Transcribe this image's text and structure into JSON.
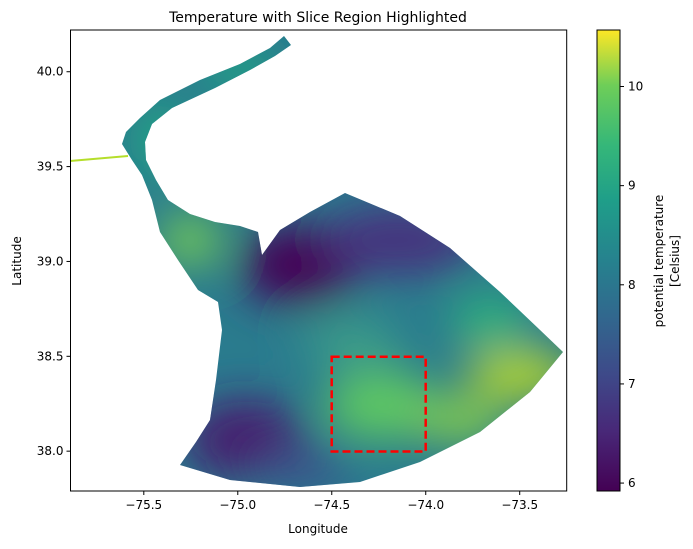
{
  "chart_data": {
    "type": "heatmap",
    "title": "Temperature with Slice Region Highlighted",
    "xlabel": "Longitude",
    "ylabel": "Latitude",
    "xlim": [
      -75.89,
      -73.25
    ],
    "ylim": [
      37.79,
      40.22
    ],
    "xticks": [
      -75.5,
      -75.0,
      -74.5,
      -74.0,
      -73.5
    ],
    "xtick_labels": [
      "−75.5",
      "−75.0",
      "−74.5",
      "−74.0",
      "−73.5"
    ],
    "yticks": [
      38.0,
      38.5,
      39.0,
      39.5,
      40.0
    ],
    "ytick_labels": [
      "38.0",
      "38.5",
      "39.0",
      "39.5",
      "40.0"
    ],
    "colorbar": {
      "label_line1": "potential temperature",
      "label_line2": "[Celsius]",
      "colormap": "viridis",
      "range": [
        5.92,
        10.57
      ],
      "ticks": [
        6,
        7,
        8,
        9,
        10
      ],
      "tick_labels": [
        "6",
        "7",
        "8",
        "9",
        "10"
      ]
    },
    "highlight_box": {
      "lon": [
        -74.5,
        -74.0
      ],
      "lat": [
        38.0,
        38.5
      ],
      "color": "#ff0000",
      "style": "dashed"
    },
    "grid": false
  }
}
